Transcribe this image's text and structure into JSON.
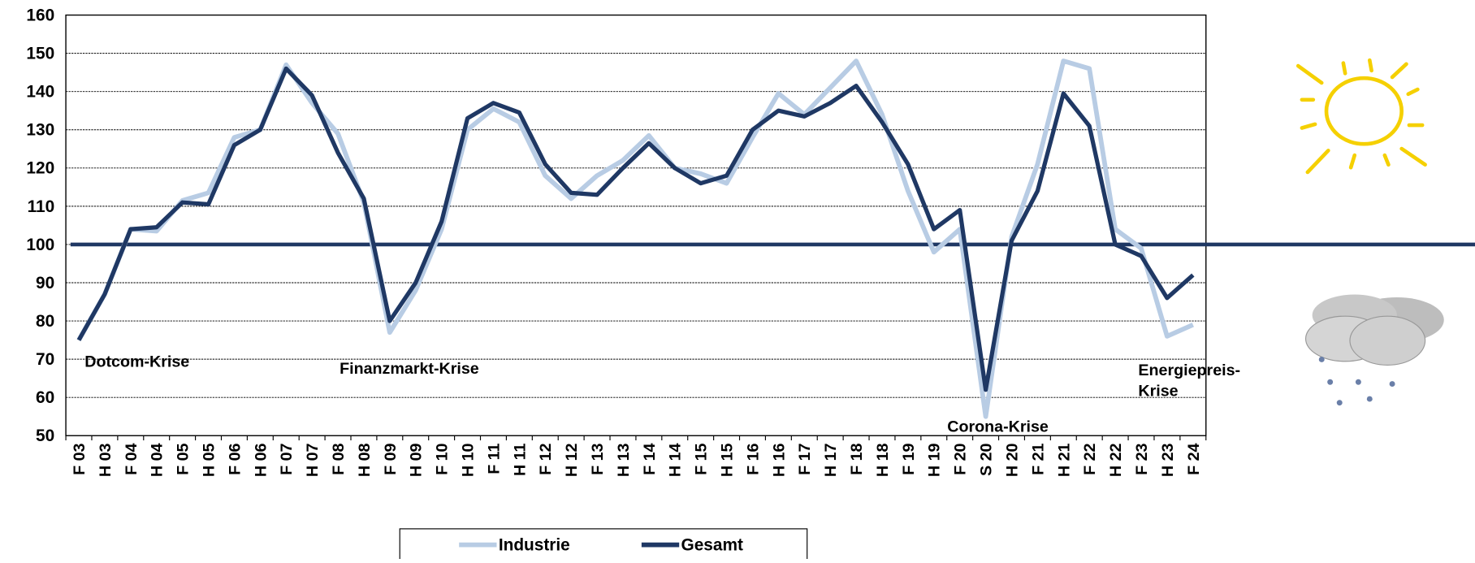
{
  "chart_data": {
    "type": "line",
    "categories": [
      "F 03",
      "H 03",
      "F 04",
      "H 04",
      "F 05",
      "H 05",
      "F 06",
      "H 06",
      "F 07",
      "H 07",
      "F 08",
      "H 08",
      "F 09",
      "H 09",
      "F 10",
      "H 10",
      "F 11",
      "H 11",
      "F 12",
      "H 12",
      "F 13",
      "H 13",
      "F 14",
      "H 14",
      "F 15",
      "H 15",
      "F 16",
      "H 16",
      "F 17",
      "H 17",
      "F 18",
      "H 18",
      "F 19",
      "H 19",
      "F 20",
      "S 20",
      "H 20",
      "F 21",
      "H 21",
      "F 22",
      "H 22",
      "F 23",
      "H 23",
      "F 24"
    ],
    "series": [
      {
        "name": "Industrie",
        "color": "#b8cce4",
        "values": [
          75,
          87,
          104,
          103.5,
          111.5,
          113.5,
          128,
          130,
          147,
          137,
          129,
          111,
          77,
          88,
          104,
          130,
          135.5,
          132,
          118,
          112,
          118,
          122,
          128.5,
          120,
          118.5,
          116,
          128,
          139.5,
          134,
          141,
          148,
          134,
          114,
          98,
          104,
          55,
          102,
          121,
          148,
          146,
          104,
          99,
          76,
          79
        ]
      },
      {
        "name": "Gesamt",
        "color": "#1f3864",
        "values": [
          75,
          87,
          104,
          104.5,
          111,
          110.5,
          126,
          130,
          146,
          139,
          124,
          112,
          80,
          90,
          106,
          133,
          137,
          134.5,
          121,
          113.5,
          113,
          120,
          126.5,
          120,
          116,
          118,
          130,
          135,
          133.5,
          137,
          141.5,
          132,
          121,
          104,
          109,
          62,
          101,
          114,
          139.5,
          131,
          100,
          97,
          86,
          92
        ]
      }
    ],
    "ylim": [
      50,
      160
    ],
    "yticks": [
      50,
      60,
      70,
      80,
      90,
      100,
      110,
      120,
      130,
      140,
      150,
      160
    ],
    "grid": true,
    "reference_line": {
      "value": 100,
      "color": "#1f3864"
    },
    "annotations": [
      {
        "lines": [
          "Dotcom-Krise"
        ]
      },
      {
        "lines": [
          "Finanzmarkt-Krise"
        ]
      },
      {
        "lines": [
          "Corona-Krise"
        ]
      },
      {
        "lines": [
          "Energiepreis-",
          "Krise"
        ]
      }
    ]
  }
}
